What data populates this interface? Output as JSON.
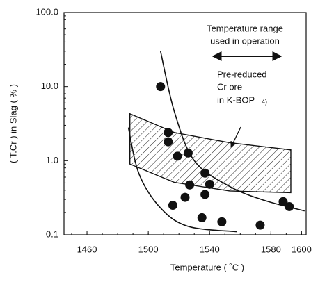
{
  "chart_data": {
    "type": "scatter",
    "xlabel": "Temperature ( ˚C )",
    "ylabel": "( T.Cr ) in Slag ( % )",
    "log_y": true,
    "color": "#111111",
    "xlim": [
      1445,
      1603
    ],
    "xticks": [
      1460,
      1500,
      1540,
      1580,
      1600
    ],
    "ylim": [
      0.1,
      100
    ],
    "yticks": [
      {
        "value": 100,
        "label": "100.0"
      },
      {
        "value": 10,
        "label": "10.0"
      },
      {
        "value": 1,
        "label": "1.0"
      },
      0.1
    ],
    "x": [
      1508,
      1513,
      1513,
      1519,
      1526,
      1516,
      1524,
      1527,
      1537,
      1540,
      1537,
      1535,
      1548,
      1573,
      1588,
      1592
    ],
    "values": [
      10,
      2.4,
      1.8,
      1.15,
      1.27,
      0.25,
      0.32,
      0.47,
      0.68,
      0.48,
      0.35,
      0.17,
      0.15,
      0.135,
      0.28,
      0.24
    ],
    "curves": [
      {
        "x": [
          1508,
          1517,
          1530,
          1553,
          1576,
          1602
        ],
        "values": [
          30,
          4.6,
          1.0,
          0.45,
          0.29,
          0.21
        ]
      },
      {
        "x": [
          1487,
          1494,
          1508,
          1526,
          1558
        ],
        "values": [
          2.8,
          0.66,
          0.23,
          0.13,
          0.11
        ]
      }
    ],
    "band": {
      "x": [
        1488,
        1517,
        1553,
        1593
      ],
      "upper": [
        4.3,
        2.4,
        1.75,
        1.4
      ],
      "lower": [
        0.9,
        0.51,
        0.39,
        0.37
      ]
    },
    "annotations": [
      "Temperature range",
      "used in operation",
      "Pre-reduced",
      "Cr ore",
      "in K-BOP",
      "4)"
    ]
  }
}
